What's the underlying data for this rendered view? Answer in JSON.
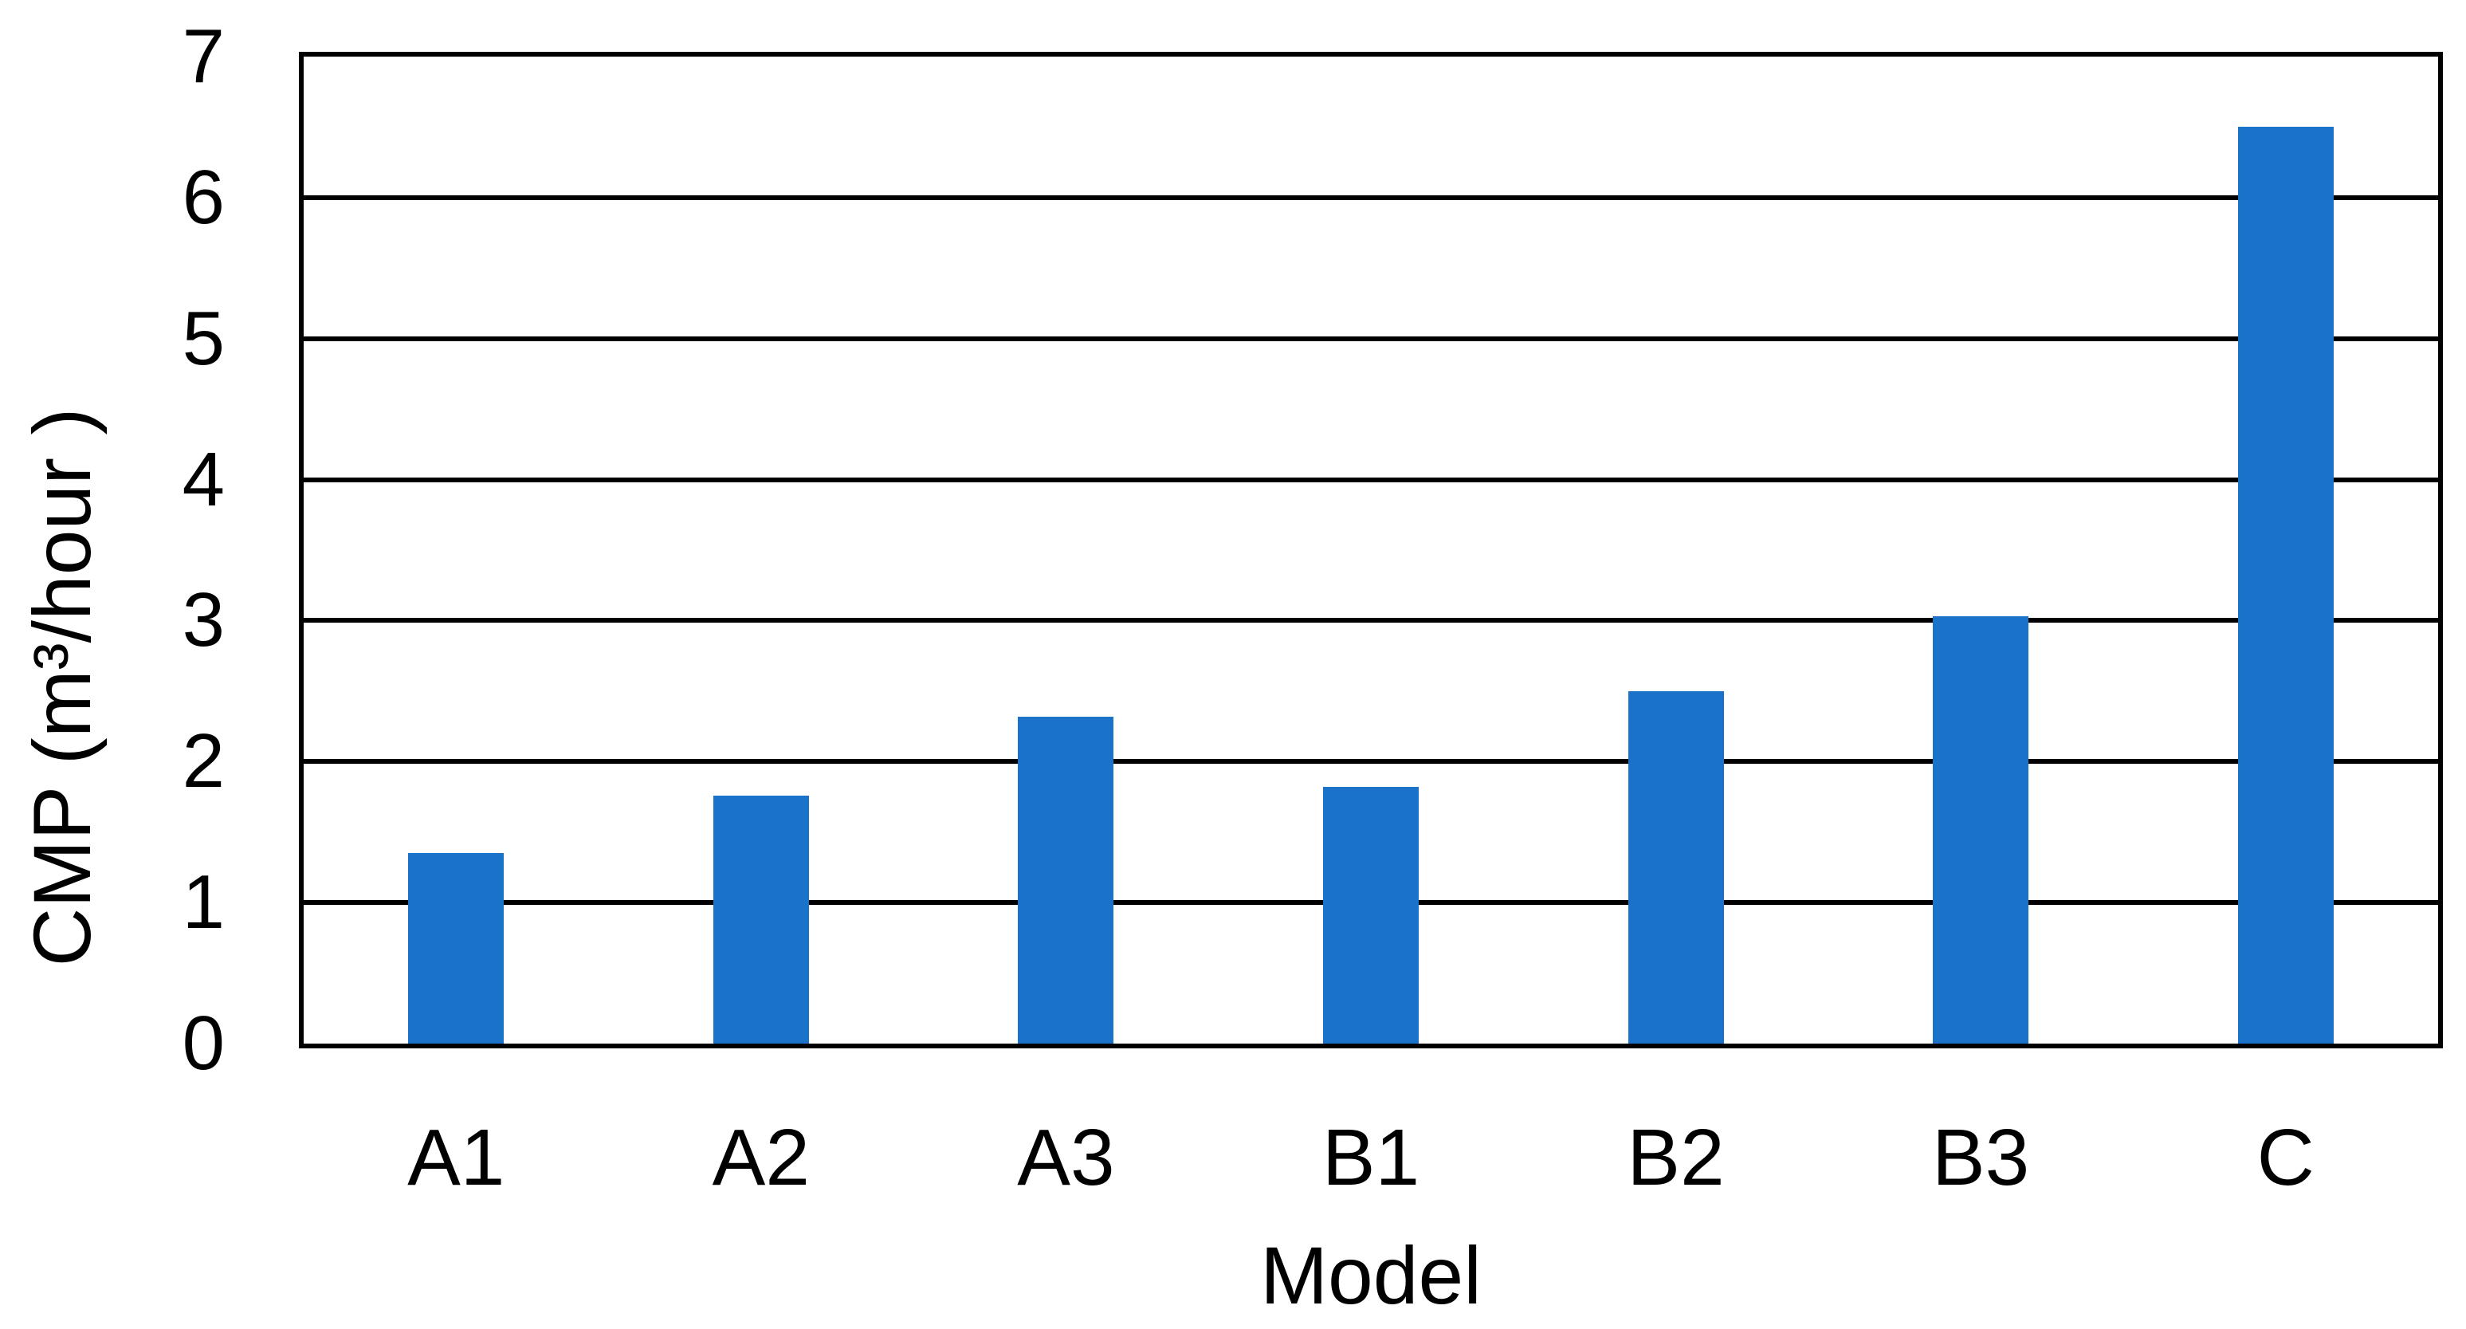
{
  "chart_data": {
    "type": "bar",
    "title": "",
    "xlabel": "Model",
    "ylabel": "CMP (m³/hour )",
    "categories": [
      "A1",
      "A2",
      "A3",
      "B1",
      "B2",
      "B3",
      "C"
    ],
    "values": [
      1.35,
      1.76,
      2.32,
      1.82,
      2.5,
      3.03,
      6.5
    ],
    "ylim": [
      0,
      7
    ],
    "ytick_step": 1,
    "yticks": [
      0,
      1,
      2,
      3,
      4,
      5,
      6,
      7
    ],
    "grid": "horizontal-on",
    "legend": "none",
    "bar_color": "#1B73C9",
    "axis_color": "#000000",
    "plot_background": "#FFFFFF"
  }
}
